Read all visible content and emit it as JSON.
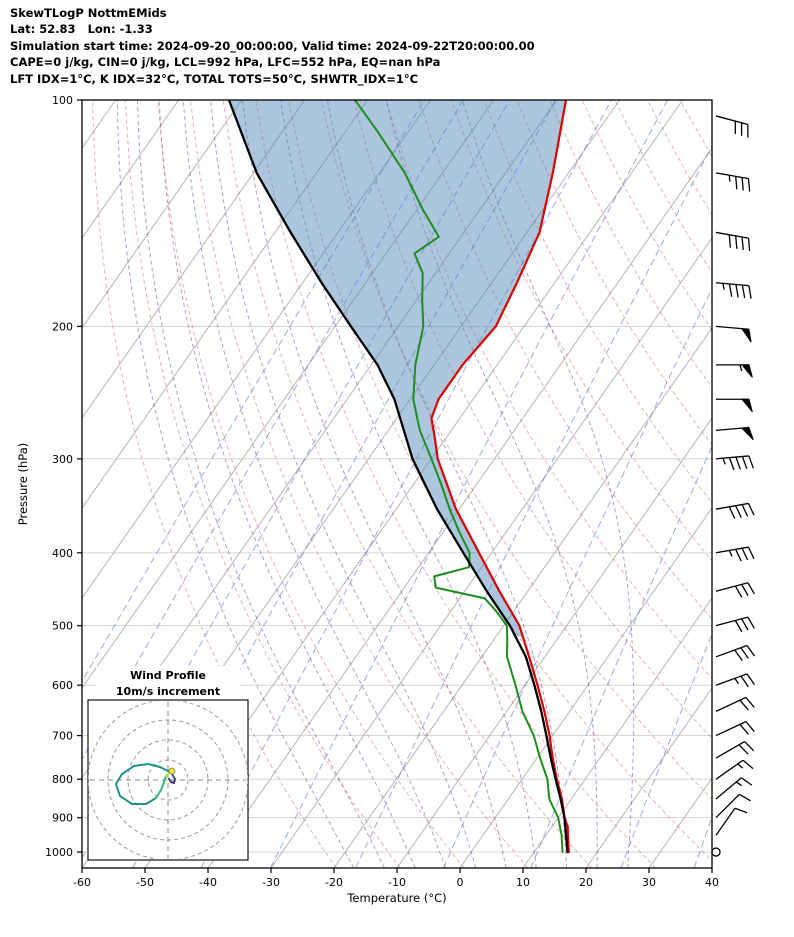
{
  "header": {
    "title": "SkewTLogP NottmEMids",
    "location": "Lat: 52.83   Lon: -1.33",
    "times": "Simulation start time: 2024-09-20_00:00:00, Valid time: 2024-09-22T20:00:00.00",
    "indices1": "CAPE=0 j/kg, CIN=0 j/kg, LCL=992 hPa, LFC=552 hPa, EQ=nan hPa",
    "indices2": "LFT IDX=1°C, K IDX=32°C, TOTAL TOTS=50°C, SHWTR_IDX=1°C"
  },
  "chart_data": {
    "type": "line",
    "subtype": "skew-t-log-p",
    "title": "SkewTLogP NottmEMids",
    "x_axis": {
      "label": "Temperature (°C)",
      "range": [
        -60,
        40
      ],
      "ticks": [
        -60,
        -50,
        -40,
        -30,
        -20,
        -10,
        0,
        10,
        20,
        30,
        40
      ]
    },
    "y_axis": {
      "label": "Pressure (hPa)",
      "range": [
        100,
        1050
      ],
      "scale": "log",
      "ticks": [
        100,
        200,
        300,
        400,
        500,
        600,
        700,
        800,
        900,
        1000
      ]
    },
    "series": [
      {
        "name": "temperature",
        "color": "#dd0000",
        "width": 2.2,
        "points": [
          [
            1000,
            15.5
          ],
          [
            950,
            13.5
          ],
          [
            925,
            12.5
          ],
          [
            900,
            11
          ],
          [
            850,
            8.5
          ],
          [
            800,
            5.5
          ],
          [
            750,
            2.5
          ],
          [
            700,
            -0.5
          ],
          [
            650,
            -4
          ],
          [
            600,
            -8
          ],
          [
            550,
            -12.5
          ],
          [
            500,
            -17.5
          ],
          [
            450,
            -24.5
          ],
          [
            400,
            -32
          ],
          [
            350,
            -40.5
          ],
          [
            300,
            -49
          ],
          [
            280,
            -52
          ],
          [
            265,
            -54.5
          ],
          [
            250,
            -55.5
          ],
          [
            225,
            -55.5
          ],
          [
            200,
            -54.5
          ],
          [
            175,
            -56
          ],
          [
            150,
            -58
          ],
          [
            125,
            -62.5
          ],
          [
            100,
            -68.5
          ]
        ]
      },
      {
        "name": "dewpoint",
        "color": "#1e8c1e",
        "width": 2.0,
        "points": [
          [
            1000,
            14.5
          ],
          [
            950,
            12.5
          ],
          [
            900,
            10
          ],
          [
            850,
            6.5
          ],
          [
            800,
            4
          ],
          [
            750,
            0.5
          ],
          [
            700,
            -3
          ],
          [
            650,
            -7.5
          ],
          [
            600,
            -11.5
          ],
          [
            550,
            -16
          ],
          [
            520,
            -18
          ],
          [
            500,
            -19.5
          ],
          [
            480,
            -22.5
          ],
          [
            460,
            -26
          ],
          [
            445,
            -35
          ],
          [
            430,
            -36.5
          ],
          [
            418,
            -32
          ],
          [
            400,
            -33.5
          ],
          [
            375,
            -37.5
          ],
          [
            350,
            -41.5
          ],
          [
            325,
            -45.5
          ],
          [
            300,
            -50
          ],
          [
            275,
            -55
          ],
          [
            250,
            -59.5
          ],
          [
            225,
            -63
          ],
          [
            200,
            -66
          ],
          [
            185,
            -69
          ],
          [
            170,
            -72
          ],
          [
            160,
            -75.5
          ],
          [
            152,
            -73.5
          ],
          [
            140,
            -79
          ],
          [
            125,
            -86
          ],
          [
            110,
            -95
          ],
          [
            100,
            -102
          ]
        ]
      },
      {
        "name": "parcel",
        "color": "#000000",
        "width": 2.3,
        "points": [
          [
            1000,
            15.3
          ],
          [
            950,
            13.2
          ],
          [
            900,
            11
          ],
          [
            850,
            8.3
          ],
          [
            800,
            5.3
          ],
          [
            750,
            2.2
          ],
          [
            700,
            -1
          ],
          [
            650,
            -4.5
          ],
          [
            600,
            -8.5
          ],
          [
            550,
            -13
          ],
          [
            500,
            -19
          ],
          [
            450,
            -26.5
          ],
          [
            400,
            -34.5
          ],
          [
            350,
            -43.5
          ],
          [
            300,
            -53
          ],
          [
            250,
            -62.5
          ],
          [
            225,
            -69
          ],
          [
            200,
            -77.5
          ],
          [
            175,
            -87
          ],
          [
            150,
            -97.5
          ],
          [
            125,
            -109.5
          ],
          [
            100,
            -122
          ]
        ]
      }
    ],
    "shading": {
      "between": [
        "parcel",
        "temperature"
      ],
      "p_from": 517,
      "p_to": 100,
      "color": "rgba(70,130,180,0.45)"
    },
    "background_lines": {
      "pressure_grid": {
        "color": "#d0d0d0"
      },
      "isotherms": {
        "from": -150,
        "to": 40,
        "step": 10,
        "color": "#b5b5b5",
        "style": "solid"
      },
      "dry_adiabats": {
        "theta_K_from": 250,
        "theta_K_to": 440,
        "step": 10,
        "color": "rgba(205,85,60,0.45)",
        "style": "dashed"
      },
      "moist_adiabats": {
        "start_temps_C": [
          -20,
          -15,
          -10,
          -5,
          0,
          5,
          10,
          15,
          20,
          25
        ],
        "color": "rgba(130,70,160,0.55)",
        "style": "dashed"
      },
      "mixing_ratio_g_kg": {
        "values": [
          0.001,
          0.003,
          0.01,
          0.03,
          0.1,
          0.3,
          1,
          3,
          8,
          20,
          40
        ],
        "color": "rgba(70,100,220,0.55)",
        "style": "dashed"
      }
    },
    "wind_barbs": {
      "color": "#000000",
      "units": "kt",
      "levels": [
        {
          "p": 1000,
          "kt": 2,
          "dir": 0
        },
        {
          "p": 950,
          "kt": 8,
          "dir": 215
        },
        {
          "p": 900,
          "kt": 12,
          "dir": 225
        },
        {
          "p": 850,
          "kt": 15,
          "dir": 230
        },
        {
          "p": 800,
          "kt": 15,
          "dir": 235
        },
        {
          "p": 750,
          "kt": 18,
          "dir": 240
        },
        {
          "p": 700,
          "kt": 20,
          "dir": 245
        },
        {
          "p": 650,
          "kt": 22,
          "dir": 245
        },
        {
          "p": 600,
          "kt": 25,
          "dir": 250
        },
        {
          "p": 550,
          "kt": 28,
          "dir": 250
        },
        {
          "p": 500,
          "kt": 30,
          "dir": 255
        },
        {
          "p": 450,
          "kt": 32,
          "dir": 255
        },
        {
          "p": 400,
          "kt": 35,
          "dir": 260
        },
        {
          "p": 350,
          "kt": 40,
          "dir": 260
        },
        {
          "p": 300,
          "kt": 45,
          "dir": 265
        },
        {
          "p": 275,
          "kt": 48,
          "dir": 265
        },
        {
          "p": 250,
          "kt": 52,
          "dir": 270
        },
        {
          "p": 225,
          "kt": 55,
          "dir": 270
        },
        {
          "p": 200,
          "kt": 50,
          "dir": 275
        },
        {
          "p": 175,
          "kt": 45,
          "dir": 275
        },
        {
          "p": 150,
          "kt": 40,
          "dir": 280
        },
        {
          "p": 125,
          "kt": 35,
          "dir": 280
        },
        {
          "p": 105,
          "kt": 30,
          "dir": 285
        }
      ]
    },
    "hodograph": {
      "title": "Wind Profile",
      "subtitle": "10m/s increment",
      "ring_increment_ms": 10,
      "rings_ms": [
        10,
        20,
        30,
        40
      ],
      "segments": [
        {
          "color": "#46327e",
          "points": [
            [
              0.5,
              0.5
            ],
            [
              1.5,
              -1
            ],
            [
              3,
              -1.5
            ],
            [
              3.5,
              0.5
            ]
          ]
        },
        {
          "color": "#365c8d",
          "points": [
            [
              3.5,
              0.5
            ],
            [
              2,
              3
            ],
            [
              0,
              4.5
            ]
          ]
        },
        {
          "color": "#21918c",
          "points": [
            [
              0,
              4.5
            ],
            [
              -4,
              6.5
            ],
            [
              -10,
              8
            ],
            [
              -17,
              7
            ],
            [
              -23,
              3
            ],
            [
              -26,
              -2
            ],
            [
              -24,
              -8
            ],
            [
              -18,
              -12
            ],
            [
              -11,
              -12
            ],
            [
              -6,
              -9
            ]
          ]
        },
        {
          "color": "#35b779",
          "points": [
            [
              -6,
              -9
            ],
            [
              -3.5,
              -5
            ],
            [
              -2,
              -1
            ],
            [
              -1,
              2
            ]
          ]
        },
        {
          "color": "#b5de2b",
          "points": [
            [
              -1,
              2
            ],
            [
              0.5,
              3.5
            ],
            [
              2,
              4.5
            ]
          ]
        }
      ],
      "marker": {
        "color": "#fde725",
        "u": 2,
        "v": 4.5
      }
    }
  }
}
